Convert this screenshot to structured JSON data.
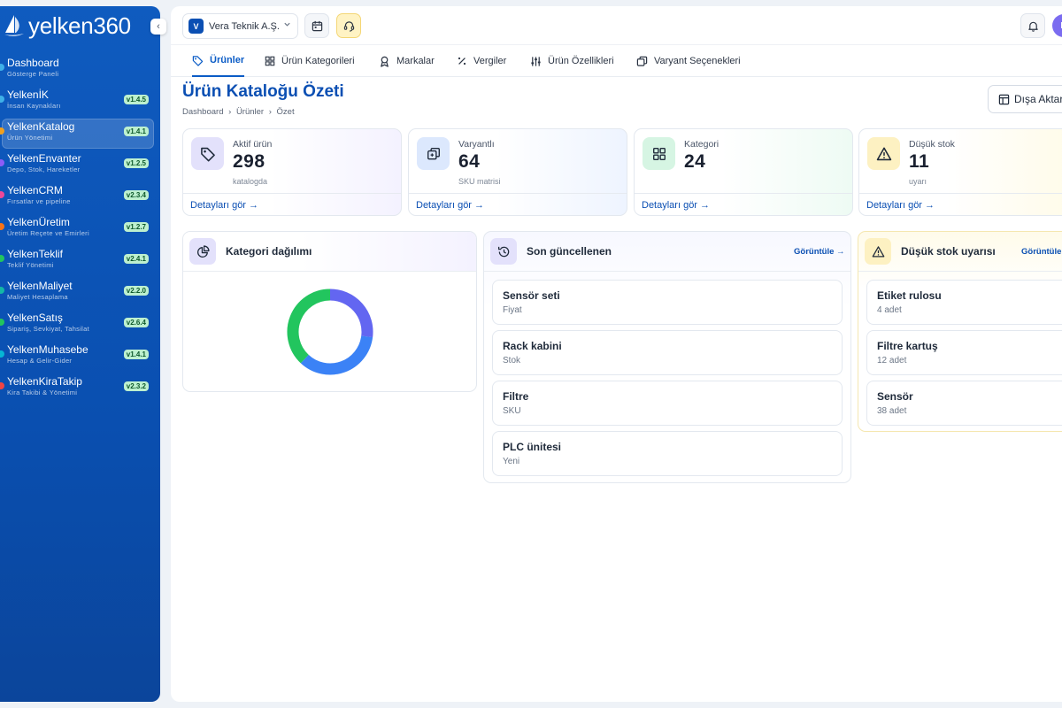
{
  "brand": {
    "name": "yelken360",
    "collapse_glyph": "‹"
  },
  "sidebar": {
    "items": [
      {
        "label": "Dashboard",
        "sub": "Gösterge Paneli",
        "badge": "",
        "dot": "#3fb0e8"
      },
      {
        "label": "YelkenİK",
        "sub": "İnsan Kaynakları",
        "badge": "v1.4.5",
        "dot": "#3fb0e8"
      },
      {
        "label": "YelkenKatalog",
        "sub": "Ürün Yönetimi",
        "badge": "v1.4.1",
        "dot": "#f0a020",
        "active": true
      },
      {
        "label": "YelkenEnvanter",
        "sub": "Depo, Stok, Hareketler",
        "badge": "v1.2.5",
        "dot": "#8b5cf6"
      },
      {
        "label": "YelkenCRM",
        "sub": "Fırsatlar ve pipeline",
        "badge": "v2.3.4",
        "dot": "#ec4899"
      },
      {
        "label": "YelkenÜretim",
        "sub": "Üretim Reçete ve Emirleri",
        "badge": "v1.2.7",
        "dot": "#f97316"
      },
      {
        "label": "YelkenTeklif",
        "sub": "Teklif Yönetimi",
        "badge": "v2.4.1",
        "dot": "#22c55e"
      },
      {
        "label": "YelkenMaliyet",
        "sub": "Maliyet Hesaplama",
        "badge": "v2.2.0",
        "dot": "#14b8a6"
      },
      {
        "label": "YelkenSatış",
        "sub": "Sipariş, Sevkiyat, Tahsilat",
        "badge": "v2.6.4",
        "dot": "#22c55e"
      },
      {
        "label": "YelkenMuhasebe",
        "sub": "Hesap & Gelir-Gider",
        "badge": "v1.4.1",
        "dot": "#06b6d4"
      },
      {
        "label": "YelkenKiraTakip",
        "sub": "Kira Takibi & Yönetimi",
        "badge": "v2.3.2",
        "dot": "#ef4444"
      }
    ]
  },
  "topbar": {
    "company_initial": "V",
    "company_name": "Vera Teknik A.Ş.",
    "user_initial": "D",
    "icons": [
      "calendar-icon",
      "headset-icon",
      "bell-icon"
    ]
  },
  "tabs": [
    {
      "label": "Ürünler",
      "icon": "tag-icon",
      "active": true
    },
    {
      "label": "Ürün Kategorileri",
      "icon": "grid-icon"
    },
    {
      "label": "Markalar",
      "icon": "award-icon"
    },
    {
      "label": "Vergiler",
      "icon": "percent-icon"
    },
    {
      "label": "Ürün Özellikleri",
      "icon": "sliders-icon"
    },
    {
      "label": "Varyant Seçenekleri",
      "icon": "layers-icon"
    }
  ],
  "page": {
    "title": "Ürün Kataloğu Özeti",
    "breadcrumb": [
      "Dashboard",
      "›",
      "Ürünler",
      "›",
      "Özet"
    ],
    "export_label": "Dışa Aktar"
  },
  "stats": [
    {
      "label": "Aktif ürün",
      "value": "298",
      "sub": "katalogda",
      "link": "Detayları gör →",
      "icon": "tag-icon",
      "color": "#6366f1"
    },
    {
      "label": "Varyantlı",
      "value": "64",
      "sub": "SKU matrisi",
      "link": "Detayları gör →",
      "icon": "variants-icon",
      "color": "#3b82f6"
    },
    {
      "label": "Kategori",
      "value": "24",
      "sub": "",
      "link": "Detayları gör →",
      "icon": "grid-icon",
      "color": "#10b981"
    },
    {
      "label": "Düşük stok",
      "value": "11",
      "sub": "uyarı",
      "link": "Detayları gör →",
      "icon": "warning-icon",
      "color": "#eab308"
    }
  ],
  "category_panel": {
    "title": "Kategori dağılımı",
    "chart_data": {
      "type": "pie",
      "title": "",
      "series": [
        {
          "values": [
            0.27,
            0.35,
            0.38
          ]
        }
      ],
      "colors": [
        "#6366f1",
        "#3b82f6",
        "#22c55e"
      ],
      "remainder_color": "#e5e7eb"
    }
  },
  "recent_panel": {
    "title": "Son güncellenen",
    "view_label": "Görüntüle →",
    "items": [
      {
        "title": "Sensör seti",
        "sub": "Fiyat"
      },
      {
        "title": "Rack kabini",
        "sub": "Stok"
      },
      {
        "title": "Filtre",
        "sub": "SKU"
      },
      {
        "title": "PLC ünitesi",
        "sub": "Yeni"
      }
    ]
  },
  "lowstock_panel": {
    "title": "Düşük stok uyarısı",
    "view_label": "Görüntüle →",
    "items": [
      {
        "title": "Etiket rulosu",
        "sub": "4 adet"
      },
      {
        "title": "Filtre kartuş",
        "sub": "12 adet"
      },
      {
        "title": "Sensör",
        "sub": "38 adet"
      }
    ]
  }
}
